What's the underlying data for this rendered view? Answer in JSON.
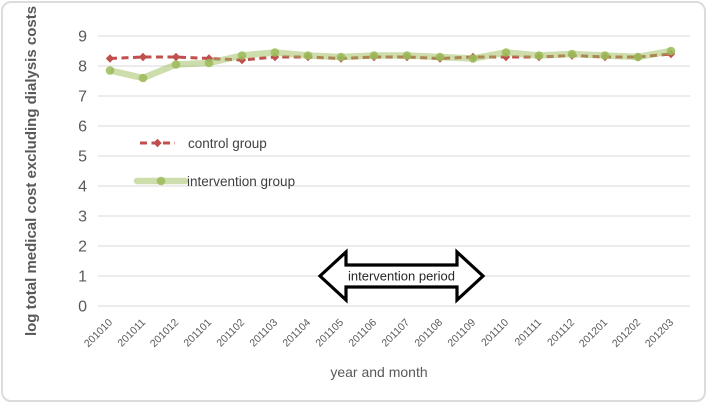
{
  "frame": {
    "background": "#ffffff",
    "border_color": "#dcdcdc"
  },
  "chart_data": {
    "type": "line",
    "title": "",
    "xlabel": "year and month",
    "ylabel": "log total medical cost excluding dialysis costs",
    "ylim": [
      0,
      9
    ],
    "yticks": [
      0,
      1,
      2,
      3,
      4,
      5,
      6,
      7,
      8,
      9
    ],
    "grid": true,
    "grid_color": "#d9d9d9",
    "axis_text_color": "#595959",
    "legend_position": "inside-left-middle",
    "categories": [
      "201010",
      "201011",
      "201012",
      "201101",
      "201102",
      "201103",
      "201104",
      "201105",
      "201106",
      "201107",
      "201108",
      "201109",
      "201110",
      "201111",
      "201112",
      "201201",
      "201202",
      "201203"
    ],
    "series": [
      {
        "name": "control group",
        "color": "#c0504d",
        "line_style": "dashed",
        "marker": "diamond",
        "values": [
          8.25,
          8.3,
          8.3,
          8.25,
          8.2,
          8.3,
          8.3,
          8.25,
          8.3,
          8.3,
          8.25,
          8.3,
          8.3,
          8.3,
          8.35,
          8.3,
          8.3,
          8.4
        ]
      },
      {
        "name": "intervention group",
        "color": "#9bbb59",
        "line_style": "solid-thick",
        "marker": "circle",
        "values": [
          7.85,
          7.6,
          8.05,
          8.1,
          8.35,
          8.45,
          8.35,
          8.3,
          8.35,
          8.35,
          8.3,
          8.25,
          8.45,
          8.35,
          8.4,
          8.35,
          8.3,
          8.5
        ]
      }
    ],
    "annotation": {
      "label": "intervention period",
      "shape": "double-headed-arrow",
      "outline_color": "#000000",
      "fill_color": "#ffffff",
      "span_categories": [
        "201105",
        "201109"
      ]
    }
  }
}
